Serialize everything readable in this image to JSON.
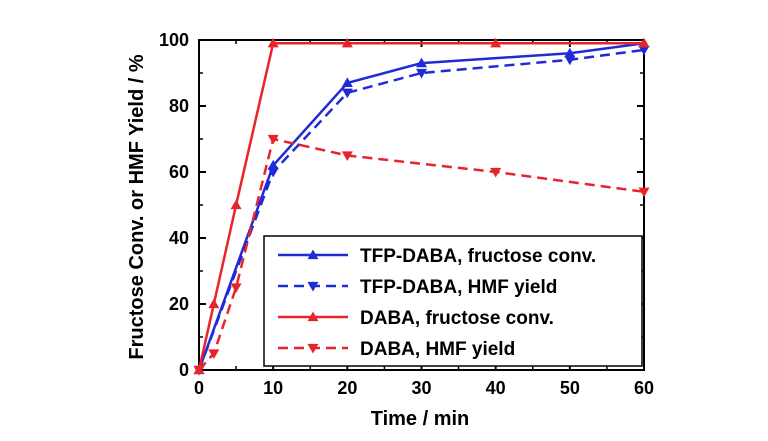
{
  "chart_data": {
    "type": "line",
    "title": "",
    "xlabel": "Time / min",
    "ylabel": "Fructose Conv. or HMF Yield / %",
    "xlim": [
      0,
      60
    ],
    "ylim": [
      0,
      100
    ],
    "xticks": [
      0,
      10,
      20,
      30,
      40,
      50,
      60
    ],
    "yticks": [
      0,
      20,
      40,
      60,
      80,
      100
    ],
    "grid": false,
    "legend_position": "bottom-right",
    "series": [
      {
        "name": "TFP-DABA, fructose conv.",
        "color": "#1f2bd6",
        "dash": "solid",
        "marker": "triangle-up",
        "x": [
          0,
          10,
          20,
          30,
          50,
          60
        ],
        "y": [
          0,
          62,
          87,
          93,
          96,
          99
        ]
      },
      {
        "name": "TFP-DABA, HMF yield",
        "color": "#1f2bd6",
        "dash": "dashed",
        "marker": "triangle-down",
        "x": [
          0,
          10,
          20,
          30,
          50,
          60
        ],
        "y": [
          0,
          60,
          84,
          90,
          94,
          97
        ]
      },
      {
        "name": "DABA, fructose conv.",
        "color": "#e8242a",
        "dash": "solid",
        "marker": "triangle-up",
        "x": [
          0,
          2,
          5,
          10,
          20,
          40,
          60
        ],
        "y": [
          0,
          20,
          50,
          99,
          99,
          99,
          99
        ]
      },
      {
        "name": "DABA, HMF yield",
        "color": "#e8242a",
        "dash": "dashed",
        "marker": "triangle-down",
        "x": [
          0,
          2,
          5,
          10,
          20,
          40,
          60
        ],
        "y": [
          0,
          5,
          25,
          70,
          65,
          60,
          54
        ]
      }
    ]
  }
}
